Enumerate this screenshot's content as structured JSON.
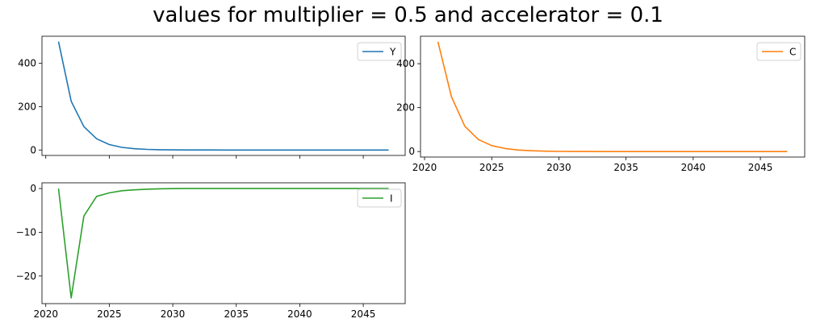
{
  "figure": {
    "title": "values for multiplier = 0.5 and accelerator = 0.1"
  },
  "chart_data": [
    {
      "type": "line",
      "panel": "top-left",
      "x": [
        2021,
        2022,
        2023,
        2024,
        2025,
        2026,
        2027,
        2028,
        2029,
        2030,
        2031,
        2032,
        2033,
        2034,
        2035,
        2036,
        2037,
        2038,
        2039,
        2040,
        2041,
        2042,
        2043,
        2044,
        2045,
        2046,
        2047
      ],
      "series": [
        {
          "name": "Y",
          "color": "#1f77b4",
          "values": [
            500,
            225,
            108,
            52,
            25,
            12,
            6,
            3,
            1.5,
            0.7,
            0.3,
            0.2,
            0.1,
            0,
            0,
            0,
            0,
            0,
            0,
            0,
            0,
            0,
            0,
            0,
            0,
            0,
            0
          ]
        }
      ],
      "ylim": [
        -25,
        525
      ],
      "yticks": [
        0,
        200,
        400
      ],
      "xlim": [
        2019.7,
        2048.3
      ],
      "xticks": [
        2020,
        2025,
        2030,
        2035,
        2040,
        2045
      ],
      "show_xticklabels": false,
      "legend": "top-right"
    },
    {
      "type": "line",
      "panel": "top-right",
      "x": [
        2021,
        2022,
        2023,
        2024,
        2025,
        2026,
        2027,
        2028,
        2029,
        2030,
        2031,
        2032,
        2033,
        2034,
        2035,
        2036,
        2037,
        2038,
        2039,
        2040,
        2041,
        2042,
        2043,
        2044,
        2045,
        2046,
        2047
      ],
      "series": [
        {
          "name": "C",
          "color": "#ff7f0e",
          "values": [
            500,
            250,
            115,
            55,
            27,
            14,
            7,
            3.5,
            1.7,
            0.8,
            0.4,
            0.2,
            0.1,
            0,
            0,
            0,
            0,
            0,
            0,
            0,
            0,
            0,
            0,
            0,
            0,
            0,
            0
          ]
        }
      ],
      "ylim": [
        -25,
        525
      ],
      "yticks": [
        0,
        200,
        400
      ],
      "xlim": [
        2019.7,
        2048.3
      ],
      "xticks": [
        2020,
        2025,
        2030,
        2035,
        2040,
        2045
      ],
      "xticklabels": [
        "2020",
        "2025",
        "2030",
        "2035",
        "2040",
        "2045"
      ],
      "show_xticklabels": true,
      "legend": "top-right"
    },
    {
      "type": "line",
      "panel": "bottom-left",
      "x": [
        2021,
        2022,
        2023,
        2024,
        2025,
        2026,
        2027,
        2028,
        2029,
        2030,
        2031,
        2032,
        2033,
        2034,
        2035,
        2036,
        2037,
        2038,
        2039,
        2040,
        2041,
        2042,
        2043,
        2044,
        2045,
        2046,
        2047
      ],
      "series": [
        {
          "name": "I",
          "color": "#2ca02c",
          "values": [
            0,
            -25,
            -6.3,
            -1.8,
            -1,
            -0.5,
            -0.3,
            -0.15,
            -0.07,
            -0.03,
            -0.01,
            0,
            0,
            0,
            0,
            0,
            0,
            0,
            0,
            0,
            0,
            0,
            0,
            0,
            0,
            0,
            0
          ]
        }
      ],
      "ylim": [
        -26.3,
        1.3
      ],
      "yticks": [
        -20,
        -10,
        0
      ],
      "yticklabels": [
        "−20",
        "−10",
        "0"
      ],
      "xlim": [
        2019.7,
        2048.3
      ],
      "xticks": [
        2020,
        2025,
        2030,
        2035,
        2040,
        2045
      ],
      "xticklabels": [
        "2020",
        "2025",
        "2030",
        "2035",
        "2040",
        "2045"
      ],
      "show_xticklabels": true,
      "legend": "top-right"
    }
  ]
}
